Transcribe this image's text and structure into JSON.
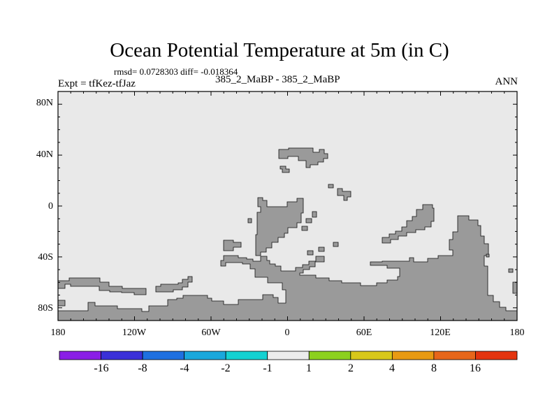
{
  "header": {
    "title": "Ocean Potential Temperature at 5m (in C)",
    "stats": "rmsd= 0.0728303 diff= -0.018364",
    "expt": "Expt = tfKez-tfJaz",
    "subtitle": "385_2_MaBP - 385_2_MaBP",
    "season": "ANN"
  },
  "map": {
    "projection": "cylindrical equidistant",
    "lon_range": [
      -180,
      180
    ],
    "lat_range": [
      -90,
      90
    ],
    "ocean_color": "#e9e9e9",
    "land_color": "#9a9a9a",
    "lat_labels": [
      "80N",
      "40N",
      "0",
      "40S",
      "80S"
    ],
    "lat_values": [
      80,
      40,
      0,
      -40,
      -80
    ],
    "lon_labels": [
      "180",
      "120W",
      "60W",
      "0",
      "60E",
      "120E",
      "180"
    ],
    "lon_values": [
      -180,
      -120,
      -60,
      0,
      60,
      120,
      180
    ]
  },
  "colorbar": {
    "labels": [
      "-16",
      "-8",
      "-4",
      "-2",
      "-1",
      "1",
      "2",
      "4",
      "8",
      "16"
    ],
    "colors": [
      "#8a1ee6",
      "#3b30d8",
      "#1f70e0",
      "#1aa8dc",
      "#14d2d2",
      "#ececec",
      "#8cd11e",
      "#d8c81a",
      "#e89a12",
      "#e7661a",
      "#e4340e"
    ]
  }
}
